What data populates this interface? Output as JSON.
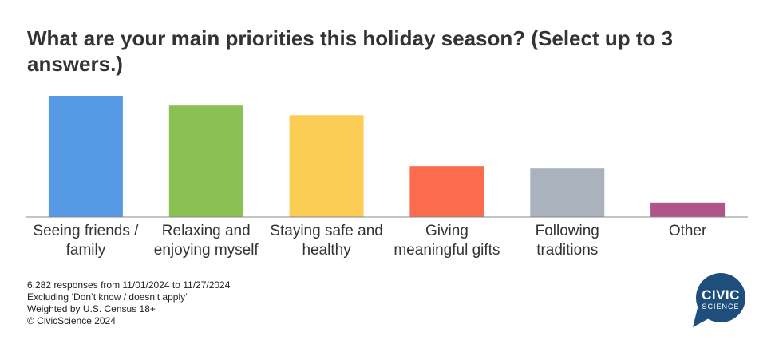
{
  "title": "What are your main priorities this holiday season? (Select up to 3 answers.)",
  "chart_data": {
    "type": "bar",
    "title": "What are your main priorities this holiday season? (Select up to 3 answers.)",
    "categories": [
      "Seeing friends / family",
      "Relaxing and enjoying myself",
      "Staying safe and healthy",
      "Giving meaningful gifts",
      "Following traditions",
      "Other"
    ],
    "label_lines": [
      [
        "Seeing friends /",
        "family"
      ],
      [
        "Relaxing and",
        "enjoying myself"
      ],
      [
        "Staying safe and",
        "healthy"
      ],
      [
        "Giving",
        "meaningful gifts"
      ],
      [
        "Following",
        "traditions"
      ],
      [
        "Other"
      ]
    ],
    "values": [
      50,
      46,
      42,
      21,
      20,
      6
    ],
    "colors": [
      "#5699e4",
      "#8bc152",
      "#fccd55",
      "#fa6c4d",
      "#aab2bd",
      "#b1548a"
    ],
    "xlabel": "",
    "ylabel": "",
    "ylim": [
      0,
      50
    ],
    "grid": false,
    "legend": "none"
  },
  "notes": [
    "6,282 responses from 11/01/2024 to 11/27/2024",
    "Excluding ‘Don’t know / doesn’t apply’",
    "Weighted by U.S. Census 18+",
    "© CivicScience 2024"
  ],
  "logo": {
    "line1": "CIVIC",
    "line2": "SCIENCE",
    "color": "#1e4f7c"
  }
}
